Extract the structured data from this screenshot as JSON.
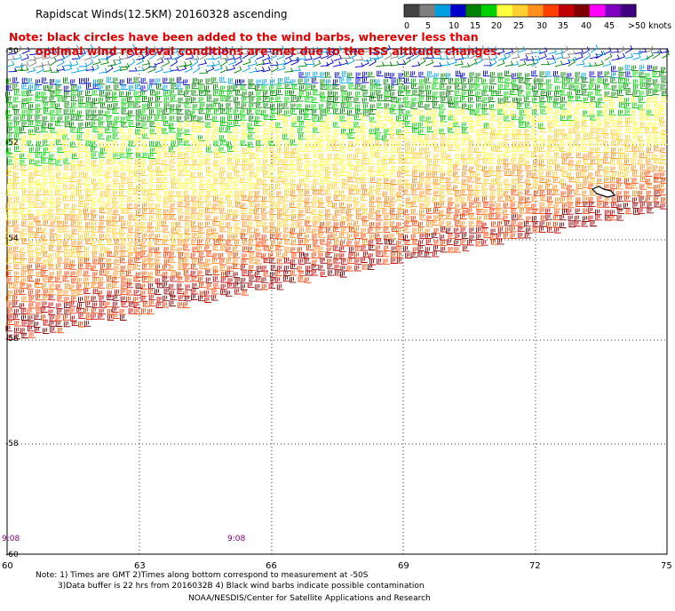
{
  "title": "Rapidscat Winds(12.5KM) 20160328 ascending",
  "note_line1": "Note: black circles have been added to the wind barbs, wherever less than",
  "note_line2": "optimal wind retrieval conditions are met due to the ISS altitude changes.",
  "colors": {
    "note": "#e00000",
    "time": "#800080",
    "scale": [
      "#444444",
      "#7f7f7f",
      "#00a0e0",
      "#0000c8",
      "#008000",
      "#00d000",
      "#ffff40",
      "#ffd030",
      "#ff9020",
      "#ff4000",
      "#c00000",
      "#800000",
      "#ff00ff",
      "#8000c0",
      "#400080"
    ]
  },
  "scale": {
    "labels": [
      "0",
      "5",
      "10",
      "15",
      "20",
      "25",
      "30",
      "35",
      "40",
      "45",
      ">50 knots"
    ]
  },
  "lat_labels": [
    "-50",
    "-52",
    "-54",
    "-56",
    "-58",
    "-60"
  ],
  "lon_labels": [
    "60",
    "63",
    "66",
    "69",
    "72",
    "75"
  ],
  "time_labels": [
    "9:08",
    "9:08"
  ],
  "footer": {
    "line1": "Note: 1) Times are GMT 2)Times along bottom correspond to measurement at -50S",
    "line2": "3)Data buffer is 22 hrs from 2016032B 4) Black wind barbs indicate possible contamination",
    "line3": "NOAA/NESDIS/Center for Satellite Applications and Research"
  }
}
